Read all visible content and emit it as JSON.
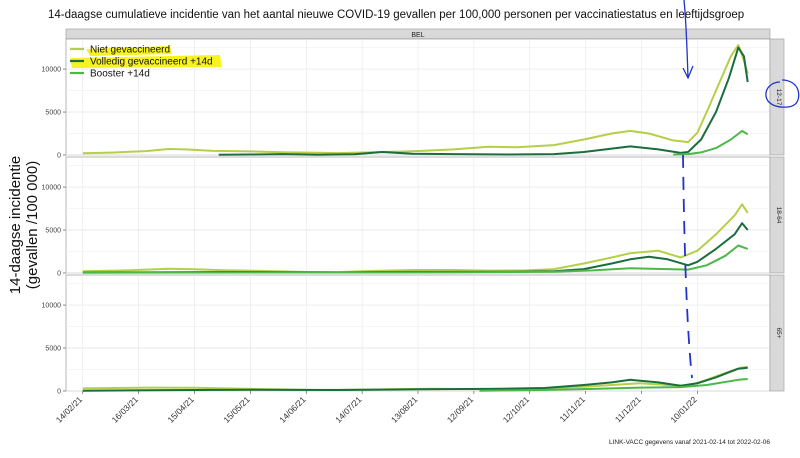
{
  "chart_data": {
    "type": "line",
    "title": "14-daagse cumulatieve incidentie van het aantal nieuwe COVID-19 gevallen per 100,000 personen per vaccinatiestatus en leeftijdsgroep",
    "ylabel_line1": "14-daagse incidentie",
    "ylabel_line2": "(gevallen /100 000)",
    "xlabel": "",
    "strip_top": "BEL",
    "caption": "LINK-VACC gegevens vanaf 2021-02-14 tot 2022-02-06",
    "x_ticks": [
      "14/02/21",
      "16/03/21",
      "15/04/21",
      "15/05/21",
      "14/06/21",
      "14/07/21",
      "13/08/21",
      "12/09/21",
      "12/10/21",
      "11/11/21",
      "11/12/21",
      "10/01/22"
    ],
    "xlim": [
      "2021-02-05",
      "2022-02-18"
    ],
    "ylim": [
      0,
      13500
    ],
    "y_ticks": [
      "0",
      "5000",
      "10000"
    ],
    "grid": true,
    "legend_position": "top-left",
    "series_styles": [
      {
        "name": "Niet gevaccineerd",
        "color": "#b5cf49"
      },
      {
        "name": "Volledig gevaccineerd +14d",
        "color": "#1a6e3c"
      },
      {
        "name": "Booster +14d",
        "color": "#4cb848"
      }
    ],
    "panels": [
      {
        "label": "12-17",
        "series": [
          {
            "name": "Niet gevaccineerd",
            "points": [
              [
                "2021-02-14",
                200
              ],
              [
                "2021-03-01",
                280
              ],
              [
                "2021-03-20",
                450
              ],
              [
                "2021-04-01",
                700
              ],
              [
                "2021-04-10",
                650
              ],
              [
                "2021-04-25",
                480
              ],
              [
                "2021-05-15",
                420
              ],
              [
                "2021-06-01",
                330
              ],
              [
                "2021-06-20",
                260
              ],
              [
                "2021-07-01",
                220
              ],
              [
                "2021-07-20",
                330
              ],
              [
                "2021-08-01",
                380
              ],
              [
                "2021-08-15",
                480
              ],
              [
                "2021-09-01",
                650
              ],
              [
                "2021-09-20",
                950
              ],
              [
                "2021-10-05",
                900
              ],
              [
                "2021-10-25",
                1150
              ],
              [
                "2021-11-10",
                1800
              ],
              [
                "2021-11-25",
                2500
              ],
              [
                "2021-12-05",
                2800
              ],
              [
                "2021-12-15",
                2500
              ],
              [
                "2021-12-28",
                1700
              ],
              [
                "2022-01-05",
                1500
              ],
              [
                "2022-01-10",
                2600
              ],
              [
                "2022-01-15",
                5000
              ],
              [
                "2022-01-22",
                8500
              ],
              [
                "2022-01-28",
                11500
              ],
              [
                "2022-02-01",
                12800
              ],
              [
                "2022-02-04",
                11000
              ],
              [
                "2022-02-06",
                9500
              ]
            ]
          },
          {
            "name": "Volledig gevaccineerd +14d",
            "points": [
              [
                "2021-04-28",
                20
              ],
              [
                "2021-05-15",
                60
              ],
              [
                "2021-06-01",
                100
              ],
              [
                "2021-06-20",
                40
              ],
              [
                "2021-07-10",
                80
              ],
              [
                "2021-07-25",
                350
              ],
              [
                "2021-08-10",
                150
              ],
              [
                "2021-09-01",
                100
              ],
              [
                "2021-10-01",
                60
              ],
              [
                "2021-10-25",
                100
              ],
              [
                "2021-11-10",
                350
              ],
              [
                "2021-11-25",
                750
              ],
              [
                "2021-12-05",
                1000
              ],
              [
                "2021-12-20",
                650
              ],
              [
                "2022-01-01",
                250
              ],
              [
                "2022-01-05",
                350
              ],
              [
                "2022-01-12",
                1800
              ],
              [
                "2022-01-20",
                5000
              ],
              [
                "2022-01-27",
                9000
              ],
              [
                "2022-02-01",
                12500
              ],
              [
                "2022-02-04",
                11500
              ],
              [
                "2022-02-06",
                8500
              ]
            ]
          },
          {
            "name": "Booster +14d",
            "points": [
              [
                "2021-12-28",
                50
              ],
              [
                "2022-01-05",
                100
              ],
              [
                "2022-01-12",
                300
              ],
              [
                "2022-01-20",
                800
              ],
              [
                "2022-01-28",
                1800
              ],
              [
                "2022-02-03",
                2800
              ],
              [
                "2022-02-06",
                2400
              ]
            ]
          }
        ]
      },
      {
        "label": "18-64",
        "series": [
          {
            "name": "Niet gevaccineerd",
            "points": [
              [
                "2021-02-14",
                200
              ],
              [
                "2021-03-10",
                300
              ],
              [
                "2021-04-01",
                500
              ],
              [
                "2021-04-15",
                430
              ],
              [
                "2021-05-01",
                330
              ],
              [
                "2021-05-20",
                250
              ],
              [
                "2021-06-15",
                120
              ],
              [
                "2021-07-01",
                100
              ],
              [
                "2021-07-20",
                250
              ],
              [
                "2021-08-10",
                350
              ],
              [
                "2021-09-01",
                350
              ],
              [
                "2021-09-20",
                280
              ],
              [
                "2021-10-10",
                300
              ],
              [
                "2021-10-25",
                450
              ],
              [
                "2021-11-10",
                1100
              ],
              [
                "2021-11-25",
                1800
              ],
              [
                "2021-12-05",
                2300
              ],
              [
                "2021-12-20",
                2600
              ],
              [
                "2022-01-01",
                1800
              ],
              [
                "2022-01-10",
                2600
              ],
              [
                "2022-01-20",
                4500
              ],
              [
                "2022-01-30",
                6700
              ],
              [
                "2022-02-03",
                8000
              ],
              [
                "2022-02-06",
                7000
              ]
            ]
          },
          {
            "name": "Volledig gevaccineerd +14d",
            "points": [
              [
                "2021-02-14",
                60
              ],
              [
                "2021-04-01",
                90
              ],
              [
                "2021-05-01",
                120
              ],
              [
                "2021-06-01",
                100
              ],
              [
                "2021-07-01",
                70
              ],
              [
                "2021-07-25",
                120
              ],
              [
                "2021-09-01",
                130
              ],
              [
                "2021-10-01",
                150
              ],
              [
                "2021-10-25",
                200
              ],
              [
                "2021-11-10",
                450
              ],
              [
                "2021-11-25",
                1100
              ],
              [
                "2021-12-05",
                1600
              ],
              [
                "2021-12-15",
                1900
              ],
              [
                "2021-12-25",
                1600
              ],
              [
                "2022-01-05",
                900
              ],
              [
                "2022-01-10",
                1300
              ],
              [
                "2022-01-20",
                2800
              ],
              [
                "2022-01-30",
                4500
              ],
              [
                "2022-02-03",
                5800
              ],
              [
                "2022-02-06",
                5000
              ]
            ]
          },
          {
            "name": "Booster +14d",
            "points": [
              [
                "2021-02-14",
                40
              ],
              [
                "2021-06-01",
                60
              ],
              [
                "2021-09-01",
                70
              ],
              [
                "2021-10-25",
                150
              ],
              [
                "2021-11-15",
                300
              ],
              [
                "2021-12-05",
                550
              ],
              [
                "2021-12-25",
                450
              ],
              [
                "2022-01-05",
                400
              ],
              [
                "2022-01-15",
                900
              ],
              [
                "2022-01-25",
                2000
              ],
              [
                "2022-02-01",
                3200
              ],
              [
                "2022-02-06",
                2800
              ]
            ]
          }
        ]
      },
      {
        "label": "65+",
        "series": [
          {
            "name": "Niet gevaccineerd",
            "points": [
              [
                "2021-02-14",
                300
              ],
              [
                "2021-03-20",
                400
              ],
              [
                "2021-04-15",
                380
              ],
              [
                "2021-05-15",
                250
              ],
              [
                "2021-06-20",
                120
              ],
              [
                "2021-07-20",
                180
              ],
              [
                "2021-08-20",
                260
              ],
              [
                "2021-09-20",
                200
              ],
              [
                "2021-10-20",
                300
              ],
              [
                "2021-11-10",
                500
              ],
              [
                "2021-11-25",
                700
              ],
              [
                "2021-12-10",
                900
              ],
              [
                "2021-12-25",
                700
              ],
              [
                "2022-01-05",
                600
              ],
              [
                "2022-01-15",
                1300
              ],
              [
                "2022-01-25",
                2100
              ],
              [
                "2022-02-02",
                2700
              ],
              [
                "2022-02-06",
                2800
              ]
            ]
          },
          {
            "name": "Volledig gevaccineerd +14d",
            "points": [
              [
                "2021-02-14",
                40
              ],
              [
                "2021-04-01",
                100
              ],
              [
                "2021-05-15",
                150
              ],
              [
                "2021-07-01",
                120
              ],
              [
                "2021-08-15",
                200
              ],
              [
                "2021-09-20",
                250
              ],
              [
                "2021-10-20",
                350
              ],
              [
                "2021-11-10",
                700
              ],
              [
                "2021-11-25",
                1000
              ],
              [
                "2021-12-05",
                1300
              ],
              [
                "2021-12-20",
                1000
              ],
              [
                "2022-01-01",
                600
              ],
              [
                "2022-01-10",
                900
              ],
              [
                "2022-01-20",
                1600
              ],
              [
                "2022-02-01",
                2600
              ],
              [
                "2022-02-06",
                2700
              ]
            ]
          },
          {
            "name": "Booster +14d",
            "points": [
              [
                "2021-09-15",
                30
              ],
              [
                "2021-10-15",
                100
              ],
              [
                "2021-11-15",
                250
              ],
              [
                "2021-12-10",
                400
              ],
              [
                "2022-01-01",
                450
              ],
              [
                "2022-01-15",
                700
              ],
              [
                "2022-02-01",
                1300
              ],
              [
                "2022-02-06",
                1400
              ]
            ]
          }
        ]
      }
    ]
  }
}
